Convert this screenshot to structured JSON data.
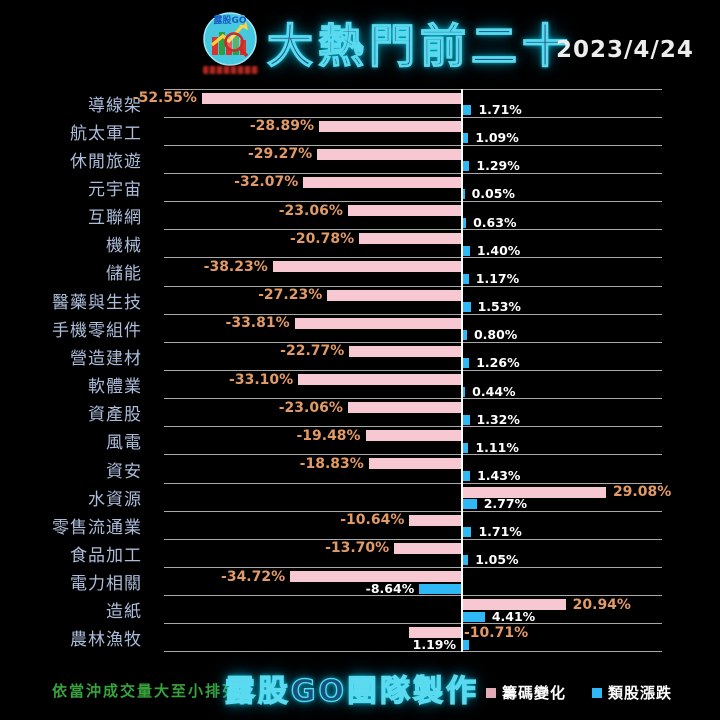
{
  "header": {
    "title": "大熱門前二十",
    "date": "2023/4/24",
    "logo_text": "露股GO"
  },
  "footer": {
    "note": "依當沖成交量大至小排列",
    "credit": "露股GO團隊製作"
  },
  "legend": {
    "items": [
      {
        "label": "籌碼變化",
        "color": "#f7c8d2"
      },
      {
        "label": "類股漲跌",
        "color": "#2eb8f5"
      }
    ]
  },
  "colors": {
    "background": "#000000",
    "category_label": "#acbdda",
    "chip_bar": "#f7c8d2",
    "sector_bar": "#2eb8f5",
    "chip_value_label": "#e29a66",
    "sector_value_label": "#ffffff",
    "axis_line": "#ffffff",
    "separator": "#c7c7c7",
    "title_glow": "#5fe0f5",
    "note_green": "#37a33c"
  },
  "chart_data": {
    "type": "bar",
    "orientation": "horizontal",
    "title": "大熱門前二十",
    "sort_note": "依當沖成交量大至小排列",
    "value_suffix": "%",
    "xlim": [
      -60,
      40
    ],
    "categories": [
      "導線架",
      "航太軍工",
      "休閒旅遊",
      "元宇宙",
      "互聯網",
      "機械",
      "儲能",
      "醫藥與生技",
      "手機零組件",
      "營造建材",
      "軟體業",
      "資產股",
      "風電",
      "資安",
      "水資源",
      "零售流通業",
      "食品加工",
      "電力相關",
      "造紙",
      "農林漁牧"
    ],
    "series": [
      {
        "name": "籌碼變化",
        "color": "#f7c8d2",
        "values": [
          -52.55,
          -28.89,
          -29.27,
          -32.07,
          -23.06,
          -20.78,
          -38.23,
          -27.23,
          -33.81,
          -22.77,
          -33.1,
          -23.06,
          -19.48,
          -18.83,
          29.08,
          -10.64,
          -13.7,
          -34.72,
          20.94,
          -10.71
        ]
      },
      {
        "name": "類股漲跌",
        "color": "#2eb8f5",
        "values": [
          1.71,
          1.09,
          1.29,
          0.05,
          0.63,
          1.4,
          1.17,
          1.53,
          0.8,
          1.26,
          0.44,
          1.32,
          1.11,
          1.43,
          2.77,
          1.71,
          1.05,
          -8.64,
          4.41,
          1.19
        ]
      }
    ],
    "label_overrides": {
      "19": {
        "chip": "axis_right",
        "sector": "left_of_axis"
      }
    }
  }
}
